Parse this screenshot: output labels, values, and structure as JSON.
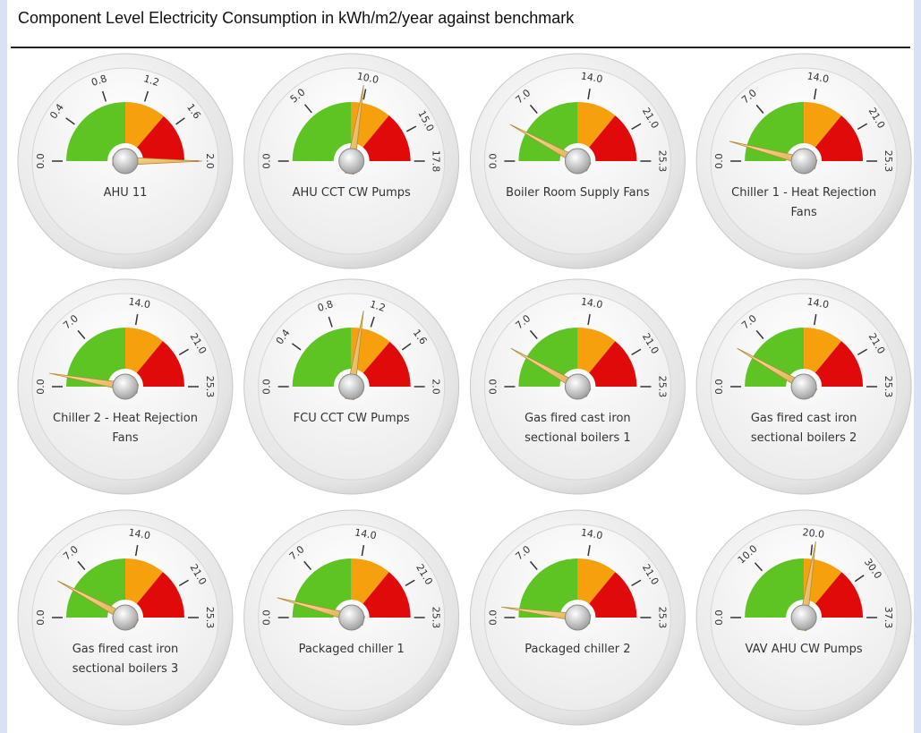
{
  "title": "Component Level Electricity Consumption in kWh/m2/year against benchmark",
  "chart_data": [
    {
      "type": "gauge",
      "title": "AHU 11",
      "value": 2.0,
      "ylim": [
        0,
        2.0
      ],
      "yticks": [
        {
          "value": 0,
          "label": "0.0"
        },
        0.4,
        0.8,
        1.2,
        1.6,
        {
          "value": 2,
          "label": "2.0"
        }
      ],
      "bands": [
        0,
        1.0,
        1.45,
        2.0
      ],
      "band_colors": [
        "#5ec423",
        "#f5a00c",
        "#e00a0a"
      ]
    },
    {
      "type": "gauge",
      "title": "AHU CCT CW Pumps",
      "value": 9.8,
      "ylim": [
        0,
        17.8
      ],
      "yticks": [
        {
          "value": 0,
          "label": "0.0"
        },
        {
          "value": 5,
          "label": "5.0"
        },
        {
          "value": 10,
          "label": "10.0"
        },
        {
          "value": 15,
          "label": "15.0"
        },
        17.8
      ],
      "bands": [
        0,
        8.9,
        12.8,
        17.8
      ],
      "band_colors": [
        "#5ec423",
        "#f5a00c",
        "#e00a0a"
      ]
    },
    {
      "type": "gauge",
      "title": "Boiler Room Supply Fans",
      "value": 4.0,
      "ylim": [
        0,
        25.3
      ],
      "yticks": [
        {
          "value": 0,
          "label": "0.0"
        },
        {
          "value": 7,
          "label": "7.0"
        },
        {
          "value": 14,
          "label": "14.0"
        },
        {
          "value": 21,
          "label": "21.0"
        },
        25.3
      ],
      "bands": [
        0,
        12.65,
        18.2,
        25.3
      ],
      "band_colors": [
        "#5ec423",
        "#f5a00c",
        "#e00a0a"
      ]
    },
    {
      "type": "gauge",
      "title": "Chiller 1 - Heat Rejection Fans",
      "value": 2.1,
      "ylim": [
        0,
        25.3
      ],
      "yticks": [
        {
          "value": 0,
          "label": "0.0"
        },
        {
          "value": 7,
          "label": "7.0"
        },
        {
          "value": 14,
          "label": "14.0"
        },
        {
          "value": 21,
          "label": "21.0"
        },
        25.3
      ],
      "bands": [
        0,
        12.65,
        18.2,
        25.3
      ],
      "band_colors": [
        "#5ec423",
        "#f5a00c",
        "#e00a0a"
      ]
    },
    {
      "type": "gauge",
      "title": "Chiller 2 - Heat Rejection Fans",
      "value": 1.4,
      "ylim": [
        0,
        25.3
      ],
      "yticks": [
        {
          "value": 0,
          "label": "0.0"
        },
        {
          "value": 7,
          "label": "7.0"
        },
        {
          "value": 14,
          "label": "14.0"
        },
        {
          "value": 21,
          "label": "21.0"
        },
        25.3
      ],
      "bands": [
        0,
        12.65,
        18.2,
        25.3
      ],
      "band_colors": [
        "#5ec423",
        "#f5a00c",
        "#e00a0a"
      ]
    },
    {
      "type": "gauge",
      "title": "FCU CCT CW Pumps",
      "value": 1.1,
      "ylim": [
        0,
        2.0
      ],
      "yticks": [
        {
          "value": 0,
          "label": "0.0"
        },
        0.4,
        0.8,
        1.2,
        1.6,
        {
          "value": 2,
          "label": "2.0"
        }
      ],
      "bands": [
        0,
        1.0,
        1.45,
        2.0
      ],
      "band_colors": [
        "#5ec423",
        "#f5a00c",
        "#e00a0a"
      ]
    },
    {
      "type": "gauge",
      "title": "Gas fired cast iron sectional boilers 1",
      "value": 4.2,
      "ylim": [
        0,
        25.3
      ],
      "yticks": [
        {
          "value": 0,
          "label": "0.0"
        },
        {
          "value": 7,
          "label": "7.0"
        },
        {
          "value": 14,
          "label": "14.0"
        },
        {
          "value": 21,
          "label": "21.0"
        },
        25.3
      ],
      "bands": [
        0,
        12.65,
        18.2,
        25.3
      ],
      "band_colors": [
        "#5ec423",
        "#f5a00c",
        "#e00a0a"
      ]
    },
    {
      "type": "gauge",
      "title": "Gas fired cast iron sectional boilers 2",
      "value": 4.2,
      "ylim": [
        0,
        25.3
      ],
      "yticks": [
        {
          "value": 0,
          "label": "0.0"
        },
        {
          "value": 7,
          "label": "7.0"
        },
        {
          "value": 14,
          "label": "14.0"
        },
        {
          "value": 21,
          "label": "21.0"
        },
        25.3
      ],
      "bands": [
        0,
        12.65,
        18.2,
        25.3
      ],
      "band_colors": [
        "#5ec423",
        "#f5a00c",
        "#e00a0a"
      ]
    },
    {
      "type": "gauge",
      "title": "Gas fired cast iron sectional boilers 3",
      "value": 4.0,
      "ylim": [
        0,
        25.3
      ],
      "yticks": [
        {
          "value": 0,
          "label": "0.0"
        },
        {
          "value": 7,
          "label": "7.0"
        },
        {
          "value": 14,
          "label": "14.0"
        },
        {
          "value": 21,
          "label": "21.0"
        },
        25.3
      ],
      "bands": [
        0,
        12.65,
        18.2,
        25.3
      ],
      "band_colors": [
        "#5ec423",
        "#f5a00c",
        "#e00a0a"
      ]
    },
    {
      "type": "gauge",
      "title": "Packaged chiller 1",
      "value": 2.1,
      "ylim": [
        0,
        25.3
      ],
      "yticks": [
        {
          "value": 0,
          "label": "0.0"
        },
        {
          "value": 7,
          "label": "7.0"
        },
        {
          "value": 14,
          "label": "14.0"
        },
        {
          "value": 21,
          "label": "21.0"
        },
        25.3
      ],
      "bands": [
        0,
        12.65,
        18.2,
        25.3
      ],
      "band_colors": [
        "#5ec423",
        "#f5a00c",
        "#e00a0a"
      ]
    },
    {
      "type": "gauge",
      "title": "Packaged chiller 2",
      "value": 1.1,
      "ylim": [
        0,
        25.3
      ],
      "yticks": [
        {
          "value": 0,
          "label": "0.0"
        },
        {
          "value": 7,
          "label": "7.0"
        },
        {
          "value": 14,
          "label": "14.0"
        },
        {
          "value": 21,
          "label": "21.0"
        },
        25.3
      ],
      "bands": [
        0,
        12.65,
        18.2,
        25.3
      ],
      "band_colors": [
        "#5ec423",
        "#f5a00c",
        "#e00a0a"
      ]
    },
    {
      "type": "gauge",
      "title": "VAV AHU CW Pumps",
      "value": 20.5,
      "ylim": [
        0,
        37.3
      ],
      "yticks": [
        {
          "value": 0,
          "label": "0.0"
        },
        {
          "value": 10,
          "label": "10.0"
        },
        {
          "value": 20,
          "label": "20.0"
        },
        {
          "value": 30,
          "label": "30.0"
        },
        37.3
      ],
      "bands": [
        0,
        18.65,
        26.9,
        37.3
      ],
      "band_colors": [
        "#5ec423",
        "#f5a00c",
        "#e00a0a"
      ]
    }
  ]
}
